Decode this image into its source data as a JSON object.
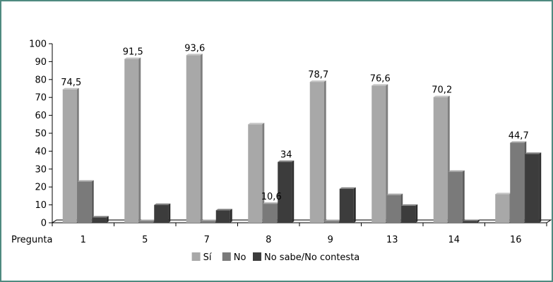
{
  "chart_data": {
    "type": "bar",
    "title": "",
    "xlabel": "Pregunta",
    "ylabel": "",
    "ylim": [
      0,
      100
    ],
    "yticks": [
      0,
      10,
      20,
      30,
      40,
      50,
      60,
      70,
      80,
      90,
      100
    ],
    "grid": false,
    "legend_position": "bottom",
    "categories": [
      "1",
      "5",
      "7",
      "8",
      "9",
      "13",
      "14",
      "16"
    ],
    "series": [
      {
        "name": "Sí",
        "color": "#a8a8a8",
        "values": [
          74.5,
          91.5,
          93.6,
          55,
          78.7,
          76.6,
          70.2,
          16
        ]
      },
      {
        "name": "No",
        "color": "#7a7a7a",
        "values": [
          23,
          1,
          1,
          10.6,
          1,
          15.5,
          28.5,
          44.7
        ]
      },
      {
        "name": "No sabe/No contesta",
        "color": "#3c3c3c",
        "values": [
          3,
          10,
          7,
          34,
          19,
          9.5,
          1,
          38.5
        ]
      }
    ],
    "data_labels": [
      {
        "category": "1",
        "series": "Sí",
        "text": "74,5"
      },
      {
        "category": "5",
        "series": "Sí",
        "text": "91,5"
      },
      {
        "category": "7",
        "series": "Sí",
        "text": "93,6"
      },
      {
        "category": "8",
        "series": "No",
        "text": "10,6"
      },
      {
        "category": "8",
        "series": "No sabe/No contesta",
        "text": "34"
      },
      {
        "category": "9",
        "series": "Sí",
        "text": "78,7"
      },
      {
        "category": "13",
        "series": "Sí",
        "text": "76,6"
      },
      {
        "category": "14",
        "series": "Sí",
        "text": "70,2"
      },
      {
        "category": "16",
        "series": "No",
        "text": "44,7"
      }
    ]
  }
}
